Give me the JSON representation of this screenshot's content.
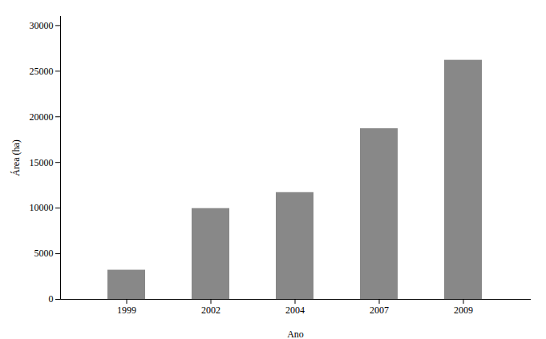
{
  "chart_data": {
    "type": "bar",
    "categories": [
      "1999",
      "2002",
      "2004",
      "2007",
      "2009"
    ],
    "values": [
      3200,
      9950,
      11700,
      18700,
      26200
    ],
    "color": "#888888",
    "xlabel": "Ano",
    "ylabel": "Área (ha)",
    "ylim": [
      0,
      31000
    ],
    "yticks": [
      0,
      5000,
      10000,
      15000,
      20000,
      25000,
      30000
    ],
    "grid": false
  }
}
